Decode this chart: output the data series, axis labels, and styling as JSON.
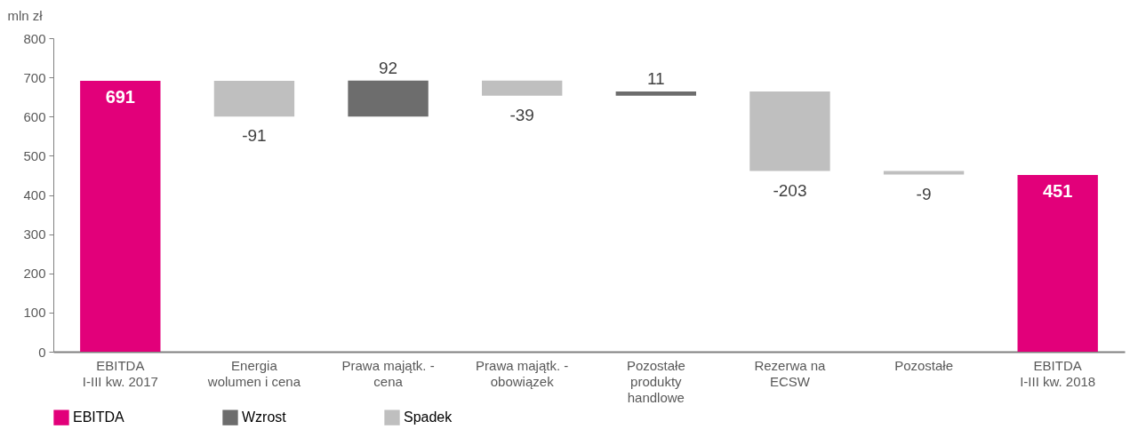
{
  "chart_data": {
    "type": "bar",
    "ylabel": "mln zł",
    "categories": [
      "EBITDA\nI-III kw. 2017",
      "Energia\nwolumen i cena",
      "Prawa majątk. -\ncena",
      "Prawa majątk. -\nobowiązek",
      "Pozostałe\nprodukty\nhandlowe",
      "Rezerwa na\nECSW",
      "Pozostałe",
      "EBITDA\nI-III kw. 2018"
    ],
    "series": [
      {
        "name": "EBITDA",
        "color": "#e2007a",
        "values": [
          691,
          null,
          null,
          null,
          null,
          null,
          null,
          451
        ]
      },
      {
        "name": "Wzrost",
        "color": "#6d6d6d",
        "values": [
          null,
          null,
          92,
          null,
          11,
          null,
          null,
          null
        ],
        "base": [
          null,
          null,
          600,
          null,
          653,
          null,
          null,
          null
        ]
      },
      {
        "name": "Spadek",
        "color": "#bfbfbf",
        "values": [
          null,
          -91,
          null,
          -39,
          null,
          -203,
          -9,
          null
        ],
        "base": [
          null,
          691,
          null,
          692,
          null,
          664,
          461,
          null
        ]
      }
    ],
    "ylim": [
      0,
      800
    ],
    "yticks": [
      0,
      100,
      200,
      300,
      400,
      500,
      600,
      700,
      800
    ],
    "data_labels": true,
    "legend": "bottom"
  }
}
